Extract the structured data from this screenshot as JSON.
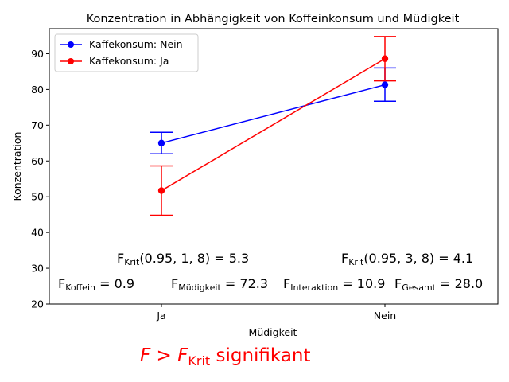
{
  "chart_data": {
    "type": "line",
    "title": "Konzentration in Abhängigkeit von Koffeinkonsum und Müdigkeit",
    "xlabel": "Müdigkeit",
    "ylabel": "Konzentration",
    "categories": [
      "Ja",
      "Nein"
    ],
    "ylim": [
      20,
      97
    ],
    "yticks": [
      20,
      30,
      40,
      50,
      60,
      70,
      80,
      90
    ],
    "grid": false,
    "legend_position": "top-left",
    "series": [
      {
        "name": "Kaffekonsum: Nein",
        "color": "#0000ff",
        "values": [
          65.0,
          81.3
        ],
        "err_low": [
          62.0,
          76.7
        ],
        "err_high": [
          68.0,
          86.0
        ]
      },
      {
        "name": "Kaffekonsum: Ja",
        "color": "#ff0000",
        "values": [
          51.7,
          88.6
        ],
        "err_low": [
          44.8,
          82.4
        ],
        "err_high": [
          58.6,
          94.8
        ]
      }
    ],
    "annotations": [
      {
        "base": "F",
        "sub": "Krit",
        "tail": "(0.95, 1, 8) = 5.3"
      },
      {
        "base": "F",
        "sub": "Krit",
        "tail": "(0.95, 3, 8) = 4.1"
      },
      {
        "base": "F",
        "sub": "Koffein",
        "tail": " = 0.9"
      },
      {
        "base": "F",
        "sub": "Müdigkeit",
        "tail": " = 72.3"
      },
      {
        "base": "F",
        "sub": "Interaktion",
        "tail": " = 10.9"
      },
      {
        "base": "F",
        "sub": "Gesamt",
        "tail": " = 28.0"
      }
    ],
    "footnote": {
      "lhs": "F",
      "op": " > ",
      "rhs": "F",
      "rhs_sub": "Krit",
      "text": " signifikant",
      "color": "#ff0000"
    }
  }
}
